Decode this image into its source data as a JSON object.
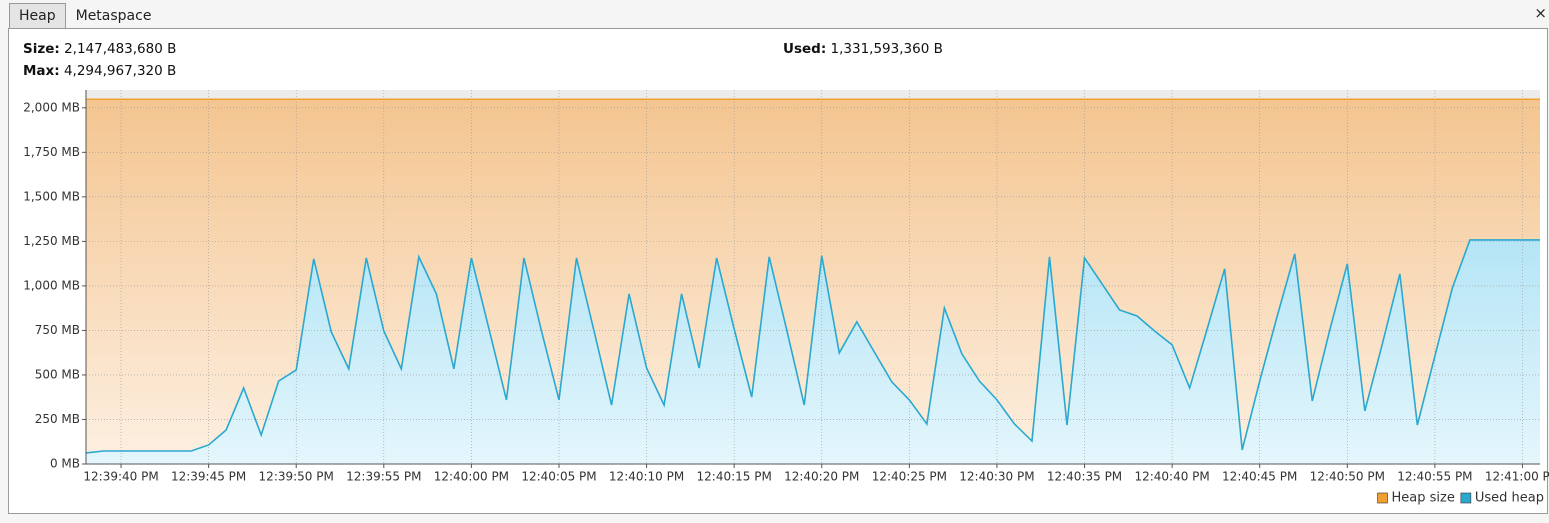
{
  "tabs": [
    "Heap",
    "Metaspace"
  ],
  "close": "×",
  "info": {
    "size": {
      "label": "Size:",
      "value": "2,147,483,680 B"
    },
    "used": {
      "label": "Used:",
      "value": "1,331,593,360 B"
    },
    "max": {
      "label": "Max:",
      "value": "4,294,967,320 B"
    }
  },
  "chart_data": {
    "type": "area",
    "x": [
      "12:39:38 PM",
      "12:39:39 PM",
      "12:39:44 PM",
      "12:39:45 PM",
      "12:39:46 PM",
      "12:39:47 PM",
      "12:39:48 PM",
      "12:39:49 PM",
      "12:39:50 PM",
      "12:39:51 PM",
      "12:39:52 PM",
      "12:39:53 PM",
      "12:39:54 PM",
      "12:39:55 PM",
      "12:39:56 PM",
      "12:39:57 PM",
      "12:39:58 PM",
      "12:39:59 PM",
      "12:40:00 PM",
      "12:40:01 PM",
      "12:40:02 PM",
      "12:40:03 PM",
      "12:40:04 PM",
      "12:40:05 PM",
      "12:40:06 PM",
      "12:40:07 PM",
      "12:40:08 PM",
      "12:40:09 PM",
      "12:40:10 PM",
      "12:40:11 PM",
      "12:40:12 PM",
      "12:40:13 PM",
      "12:40:14 PM",
      "12:40:15 PM",
      "12:40:16 PM",
      "12:40:17 PM",
      "12:40:18 PM",
      "12:40:19 PM",
      "12:40:20 PM",
      "12:40:21 PM",
      "12:40:22 PM",
      "12:40:23 PM",
      "12:40:24 PM",
      "12:40:25 PM",
      "12:40:26 PM",
      "12:40:27 PM",
      "12:40:28 PM",
      "12:40:29 PM",
      "12:40:30 PM",
      "12:40:31 PM",
      "12:40:32 PM",
      "12:40:33 PM",
      "12:40:34 PM",
      "12:40:35 PM",
      "12:40:36 PM",
      "12:40:37 PM",
      "12:40:38 PM",
      "12:40:39 PM",
      "12:40:40 PM",
      "12:40:41 PM",
      "12:40:42 PM",
      "12:40:43 PM",
      "12:40:44 PM",
      "12:40:45 PM",
      "12:40:46 PM",
      "12:40:47 PM",
      "12:40:48 PM",
      "12:40:49 PM",
      "12:40:50 PM",
      "12:40:51 PM",
      "12:40:52 PM",
      "12:40:53 PM",
      "12:40:54 PM",
      "12:40:55 PM",
      "12:40:56 PM",
      "12:40:57 PM",
      "12:41:01 PM"
    ],
    "series": [
      {
        "name": "Heap size",
        "color": "#f0a030",
        "fill_top": "#f4c590",
        "fill_bottom": "#fdf0e2",
        "values": [
          2048,
          2048,
          2048,
          2048,
          2048,
          2048,
          2048,
          2048,
          2048,
          2048,
          2048,
          2048,
          2048,
          2048,
          2048,
          2048,
          2048,
          2048,
          2048,
          2048,
          2048,
          2048,
          2048,
          2048,
          2048,
          2048,
          2048,
          2048,
          2048,
          2048,
          2048,
          2048,
          2048,
          2048,
          2048,
          2048,
          2048,
          2048,
          2048,
          2048,
          2048,
          2048,
          2048,
          2048,
          2048,
          2048,
          2048,
          2048,
          2048,
          2048,
          2048,
          2048,
          2048,
          2048,
          2048,
          2048,
          2048,
          2048,
          2048,
          2048,
          2048,
          2048,
          2048,
          2048,
          2048,
          2048,
          2048,
          2048,
          2048,
          2048,
          2048,
          2048,
          2048,
          2048,
          2048,
          2048,
          2048
        ]
      },
      {
        "name": "Used heap",
        "color": "#2aa8d0",
        "fill_top": "#b5e5f6",
        "fill_bottom": "#e4f6fc",
        "values": [
          62,
          73,
          73,
          107,
          191,
          427,
          163,
          466,
          528,
          1152,
          742,
          534,
          1157,
          747,
          534,
          1163,
          955,
          534,
          1157,
          760,
          360,
          1157,
          747,
          360,
          1157,
          747,
          331,
          955,
          539,
          331,
          955,
          539,
          1157,
          758,
          376,
          1163,
          753,
          331,
          1169,
          624,
          798,
          629,
          461,
          360,
          225,
          876,
          618,
          466,
          360,
          225,
          129,
          1163,
          219,
          1157,
          1011,
          865,
          831,
          747,
          669,
          427,
          758,
          1096,
          79,
          466,
          831,
          1180,
          354,
          753,
          1124,
          298,
          674,
          1067,
          219,
          607,
          989,
          1258,
          1258
        ]
      }
    ],
    "xlim": [
      "12:39:38 PM",
      "12:41:01 PM"
    ],
    "xticks": [
      "12:39:40 PM",
      "12:39:45 PM",
      "12:39:50 PM",
      "12:39:55 PM",
      "12:40:00 PM",
      "12:40:05 PM",
      "12:40:10 PM",
      "12:40:15 PM",
      "12:40:20 PM",
      "12:40:25 PM",
      "12:40:30 PM",
      "12:40:35 PM",
      "12:40:40 PM",
      "12:40:45 PM",
      "12:40:50 PM",
      "12:40:55 PM",
      "12:41:00 PM"
    ],
    "ylim": [
      0,
      2100
    ],
    "yticks": [
      {
        "value": 0,
        "label": "0 MB"
      },
      {
        "value": 250,
        "label": "250 MB"
      },
      {
        "value": 500,
        "label": "500 MB"
      },
      {
        "value": 750,
        "label": "750 MB"
      },
      {
        "value": 1000,
        "label": "1,000 MB"
      },
      {
        "value": 1250,
        "label": "1,250 MB"
      },
      {
        "value": 1500,
        "label": "1,500 MB"
      },
      {
        "value": 1750,
        "label": "1,750 MB"
      },
      {
        "value": 2000,
        "label": "2,000 MB"
      }
    ],
    "grid": true,
    "legend": "bottom-right"
  }
}
